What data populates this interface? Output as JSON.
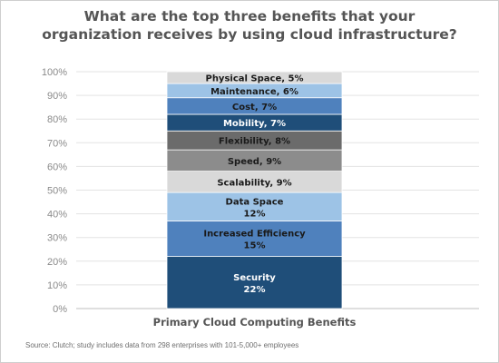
{
  "title_lines": [
    "What are the top three benefits that your",
    "organization receives by using cloud infrastructure?"
  ],
  "source_note": "Source: Clutch; study includes data from 298 enterprises with 101-5,000+ employees",
  "chart_data": {
    "type": "bar",
    "stacked": true,
    "title": "What are the top three benefits that your organization receives by using cloud infrastructure?",
    "xlabel": "",
    "ylabel": "",
    "categories": [
      "Primary Cloud Computing Benefits"
    ],
    "ylim": [
      0,
      100
    ],
    "yticks": [
      "0%",
      "10%",
      "20%",
      "30%",
      "40%",
      "50%",
      "60%",
      "70%",
      "80%",
      "90%",
      "100%"
    ],
    "grid": true,
    "series": [
      {
        "name": "Security",
        "value": 22,
        "color": "#1f4e79",
        "text_color": "#ffffff",
        "label_lines": [
          "Security",
          "22%"
        ]
      },
      {
        "name": "Increased Efficiency",
        "value": 15,
        "color": "#4f81bd",
        "text_color": "#1a1a1a",
        "label_lines": [
          "Increased Efficiency",
          "15%"
        ]
      },
      {
        "name": "Data Space",
        "value": 12,
        "color": "#9dc3e6",
        "text_color": "#1a1a1a",
        "label_lines": [
          "Data Space",
          "12%"
        ]
      },
      {
        "name": "Scalability",
        "value": 9,
        "color": "#d9d9d9",
        "text_color": "#1a1a1a",
        "label_lines": [
          "Scalability, 9%"
        ]
      },
      {
        "name": "Speed",
        "value": 9,
        "color": "#8c8c8c",
        "text_color": "#1a1a1a",
        "label_lines": [
          "Speed, 9%"
        ]
      },
      {
        "name": "Flexibility",
        "value": 8,
        "color": "#6b6b6b",
        "text_color": "#1a1a1a",
        "label_lines": [
          "Flexibility, 8%"
        ]
      },
      {
        "name": "Mobility",
        "value": 7,
        "color": "#1f4e79",
        "text_color": "#ffffff",
        "label_lines": [
          "Mobility, 7%"
        ]
      },
      {
        "name": "Cost",
        "value": 7,
        "color": "#4f81bd",
        "text_color": "#1a1a1a",
        "label_lines": [
          "Cost, 7%"
        ]
      },
      {
        "name": "Maintenance",
        "value": 6,
        "color": "#9dc3e6",
        "text_color": "#1a1a1a",
        "label_lines": [
          "Maintenance, 6%"
        ]
      },
      {
        "name": "Physical Space",
        "value": 5,
        "color": "#d9d9d9",
        "text_color": "#1a1a1a",
        "label_lines": [
          "Physical Space, 5%"
        ]
      }
    ]
  }
}
